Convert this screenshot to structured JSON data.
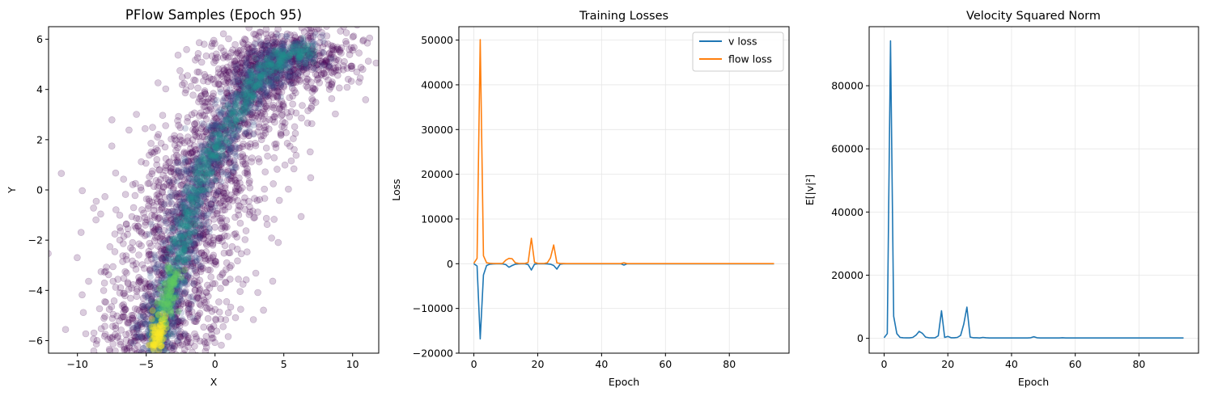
{
  "chart_data": [
    {
      "type": "scatter",
      "title": "PFlow Samples (Epoch 95)",
      "xlabel": "X",
      "ylabel": "Y",
      "xlim": [
        -12.1,
        11.9
      ],
      "ylim": [
        -6.5,
        6.5
      ],
      "xticks": [
        -10,
        -5,
        0,
        5,
        10
      ],
      "yticks": [
        -6,
        -4,
        -2,
        0,
        2,
        4,
        6
      ],
      "grid": false,
      "colormap": "viridis",
      "point_alpha": 0.2,
      "density_path": [
        [
          -4.3,
          -6.3
        ],
        [
          -4,
          -5.2
        ],
        [
          -3,
          -3.6
        ],
        [
          -2.4,
          -2
        ],
        [
          -1.8,
          -0.5
        ],
        [
          -0.6,
          1
        ],
        [
          0.6,
          2.2
        ],
        [
          2.4,
          3.8
        ],
        [
          3.6,
          4.8
        ],
        [
          5,
          5.3
        ],
        [
          7,
          5.6
        ]
      ],
      "points_estimated": "dense diagonal band from (-5,-6.5) to (8,6.5); several thousand points with spread roughly 2-3 units"
    },
    {
      "type": "line",
      "title": "Training Losses",
      "xlabel": "Epoch",
      "ylabel": "Loss",
      "xlim": [
        -4.7,
        98.7
      ],
      "ylim": [
        -20000,
        53000
      ],
      "xticks": [
        0,
        20,
        40,
        60,
        80
      ],
      "yticks": [
        -20000,
        -10000,
        0,
        10000,
        20000,
        30000,
        40000,
        50000
      ],
      "grid": true,
      "legend_position": "top-right",
      "x": [
        0,
        1,
        2,
        3,
        4,
        5,
        6,
        7,
        8,
        9,
        10,
        11,
        12,
        13,
        14,
        15,
        16,
        17,
        18,
        19,
        20,
        21,
        22,
        23,
        24,
        25,
        26,
        27,
        28,
        29,
        30,
        31,
        32,
        33,
        34,
        35,
        36,
        37,
        38,
        39,
        40,
        41,
        42,
        43,
        44,
        45,
        46,
        47,
        48,
        49,
        50,
        51,
        52,
        53,
        54,
        55,
        56,
        57,
        58,
        59,
        60,
        61,
        62,
        63,
        64,
        65,
        66,
        67,
        68,
        69,
        70,
        71,
        72,
        73,
        74,
        75,
        76,
        77,
        78,
        79,
        80,
        81,
        82,
        83,
        84,
        85,
        86,
        87,
        88,
        89,
        90,
        91,
        92,
        93,
        94
      ],
      "series": [
        {
          "name": "v loss",
          "color": "#1f77b4",
          "values": [
            0,
            -500,
            -16800,
            -2500,
            -400,
            -100,
            -50,
            -20,
            -20,
            -50,
            -200,
            -800,
            -400,
            -100,
            -50,
            -30,
            -30,
            -200,
            -1400,
            -100,
            -30,
            -20,
            -20,
            -50,
            -100,
            -400,
            -1200,
            -100,
            -20,
            -10,
            -10,
            -10,
            -10,
            -10,
            -10,
            -10,
            -10,
            -10,
            -10,
            -10,
            -10,
            -10,
            -10,
            -10,
            -10,
            -10,
            -10,
            -300,
            -10,
            -10,
            -10,
            -10,
            -10,
            -10,
            -10,
            -10,
            -10,
            -10,
            -10,
            -10,
            -10,
            -10,
            -10,
            -10,
            -10,
            -10,
            -10,
            -10,
            -10,
            -10,
            -10,
            -10,
            -10,
            -10,
            -10,
            -10,
            -10,
            -10,
            -10,
            -10,
            -10,
            -10,
            -10,
            -10,
            -10,
            -10,
            -10,
            -10,
            -10,
            -10,
            -10,
            -10,
            -10,
            -10,
            -10
          ]
        },
        {
          "name": "flow loss",
          "color": "#ff7f0e",
          "values": [
            100,
            1200,
            50100,
            1800,
            200,
            100,
            50,
            30,
            30,
            60,
            800,
            1200,
            1100,
            200,
            80,
            50,
            60,
            300,
            5700,
            300,
            80,
            50,
            60,
            200,
            1300,
            4200,
            200,
            60,
            30,
            20,
            20,
            20,
            20,
            20,
            20,
            20,
            20,
            20,
            20,
            20,
            20,
            20,
            20,
            20,
            20,
            20,
            20,
            200,
            20,
            20,
            20,
            20,
            20,
            20,
            20,
            20,
            20,
            20,
            20,
            20,
            20,
            20,
            20,
            20,
            20,
            20,
            20,
            20,
            20,
            20,
            20,
            20,
            20,
            20,
            20,
            20,
            20,
            20,
            20,
            20,
            20,
            20,
            20,
            20,
            20,
            20,
            20,
            20,
            20,
            20,
            20,
            20,
            20,
            20,
            20
          ]
        }
      ]
    },
    {
      "type": "line",
      "title": "Velocity Squared Norm",
      "xlabel": "Epoch",
      "ylabel": "E[|v|²]",
      "xlim": [
        -4.7,
        98.7
      ],
      "ylim": [
        -4700,
        98700
      ],
      "xticks": [
        0,
        20,
        40,
        60,
        80
      ],
      "yticks": [
        0,
        20000,
        40000,
        60000,
        80000
      ],
      "grid": true,
      "x": [
        0,
        1,
        2,
        3,
        4,
        5,
        6,
        7,
        8,
        9,
        10,
        11,
        12,
        13,
        14,
        15,
        16,
        17,
        18,
        19,
        20,
        21,
        22,
        23,
        24,
        25,
        26,
        27,
        28,
        29,
        30,
        31,
        32,
        33,
        34,
        35,
        36,
        37,
        38,
        39,
        40,
        41,
        42,
        43,
        44,
        45,
        46,
        47,
        48,
        49,
        50,
        51,
        52,
        53,
        54,
        55,
        56,
        57,
        58,
        59,
        60,
        61,
        62,
        63,
        64,
        65,
        66,
        67,
        68,
        69,
        70,
        71,
        72,
        73,
        74,
        75,
        76,
        77,
        78,
        79,
        80,
        81,
        82,
        83,
        84,
        85,
        86,
        87,
        88,
        89,
        90,
        91,
        92,
        93,
        94
      ],
      "series": [
        {
          "color": "#1f77b4",
          "values": [
            200,
            1500,
            94200,
            7000,
            1500,
            300,
            200,
            150,
            150,
            300,
            1000,
            2200,
            1600,
            400,
            200,
            150,
            200,
            800,
            8700,
            300,
            600,
            200,
            200,
            300,
            900,
            4500,
            9900,
            400,
            200,
            200,
            100,
            300,
            200,
            100,
            100,
            100,
            100,
            100,
            100,
            100,
            100,
            100,
            100,
            100,
            100,
            100,
            200,
            500,
            200,
            100,
            100,
            100,
            100,
            100,
            100,
            100,
            200,
            100,
            100,
            100,
            100,
            100,
            100,
            100,
            100,
            100,
            100,
            100,
            100,
            100,
            100,
            100,
            100,
            100,
            100,
            100,
            100,
            100,
            100,
            100,
            100,
            100,
            100,
            100,
            100,
            100,
            100,
            100,
            100,
            100,
            100,
            100,
            100,
            100,
            100
          ]
        }
      ]
    }
  ]
}
